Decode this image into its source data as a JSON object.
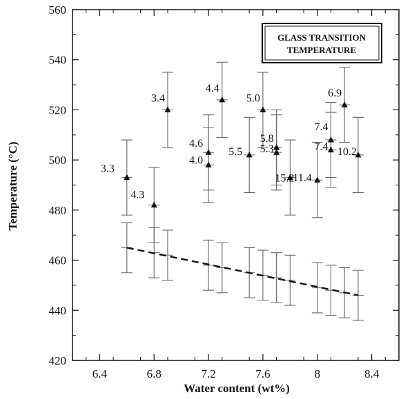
{
  "chart_data": {
    "type": "scatter",
    "title": "",
    "xlabel": "Water content (wt%)",
    "ylabel": "Temperature (°C)",
    "xlim": [
      6.2,
      8.6
    ],
    "ylim": [
      420,
      560
    ],
    "x_ticks": [
      "6.4",
      "6.8",
      "7.2",
      "7.6",
      "8",
      "8.4"
    ],
    "y_ticks": [
      "420",
      "440",
      "460",
      "480",
      "500",
      "520",
      "540",
      "560"
    ],
    "legend_box": [
      "GLASS TRANSITION",
      "TEMPERATURE"
    ],
    "legend_position": "top-right",
    "grid": false,
    "series": [
      {
        "marker": "triangle",
        "points": [
          {
            "x": 6.6,
            "y": 493,
            "err": 15,
            "label": "3.3"
          },
          {
            "x": 6.8,
            "y": 482,
            "err": 15,
            "label": "4.3"
          },
          {
            "x": 6.9,
            "y": 520,
            "err": 15,
            "label": "3.4"
          },
          {
            "x": 7.2,
            "y": 503,
            "err": 15,
            "label": "4.6"
          },
          {
            "x": 7.2,
            "y": 498,
            "err": 15,
            "label": "4.0"
          },
          {
            "x": 7.3,
            "y": 524,
            "err": 15,
            "label": "4.4"
          },
          {
            "x": 7.5,
            "y": 502,
            "err": 15,
            "label": "5.5"
          },
          {
            "x": 7.6,
            "y": 520,
            "err": 15,
            "label": "5.0"
          },
          {
            "x": 7.7,
            "y": 505,
            "err": 15,
            "label": "5.8"
          },
          {
            "x": 7.7,
            "y": 503,
            "err": 15,
            "label": "5.3"
          },
          {
            "x": 7.8,
            "y": 493,
            "err": 15,
            "label": "15.2"
          },
          {
            "x": 8.0,
            "y": 492,
            "err": 15,
            "label": "11.4"
          },
          {
            "x": 8.1,
            "y": 508,
            "err": 15,
            "label": "7.4"
          },
          {
            "x": 8.1,
            "y": 504,
            "err": 15,
            "label": "7.4"
          },
          {
            "x": 8.2,
            "y": 522,
            "err": 15,
            "label": "6.9"
          },
          {
            "x": 8.3,
            "y": 502,
            "err": 15,
            "label": "10.2"
          }
        ]
      },
      {
        "marker": "none",
        "points": [
          {
            "x": 6.6,
            "y": 465,
            "err": 10
          },
          {
            "x": 6.8,
            "y": 463,
            "err": 10
          },
          {
            "x": 6.9,
            "y": 462,
            "err": 10
          },
          {
            "x": 7.2,
            "y": 458,
            "err": 10
          },
          {
            "x": 7.3,
            "y": 457,
            "err": 10
          },
          {
            "x": 7.5,
            "y": 455,
            "err": 10
          },
          {
            "x": 7.6,
            "y": 454,
            "err": 10
          },
          {
            "x": 7.7,
            "y": 453,
            "err": 10
          },
          {
            "x": 7.8,
            "y": 452,
            "err": 10
          },
          {
            "x": 8.0,
            "y": 449,
            "err": 10
          },
          {
            "x": 8.1,
            "y": 448,
            "err": 10
          },
          {
            "x": 8.2,
            "y": 447,
            "err": 10
          },
          {
            "x": 8.3,
            "y": 446,
            "err": 10
          }
        ]
      }
    ],
    "trend_line": {
      "style": "dashed",
      "x": [
        6.6,
        8.3
      ],
      "y": [
        465,
        446
      ]
    }
  }
}
